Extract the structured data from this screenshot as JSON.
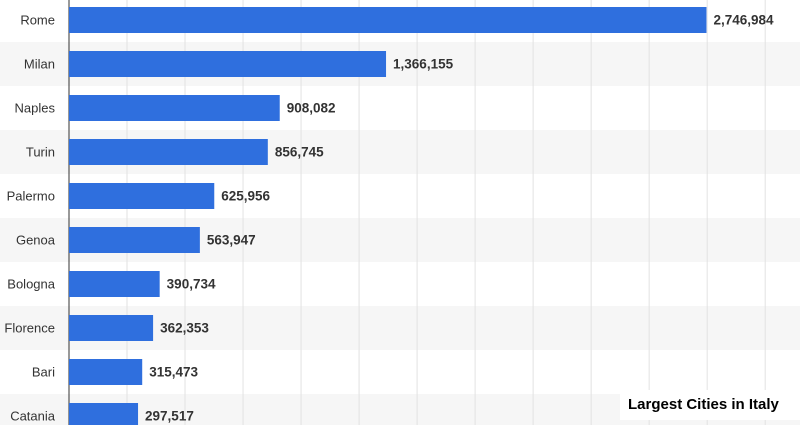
{
  "chart_data": {
    "type": "bar",
    "orientation": "horizontal",
    "title": "Largest Cities in Italy",
    "categories": [
      "Rome",
      "Milan",
      "Naples",
      "Turin",
      "Palermo",
      "Genoa",
      "Bologna",
      "Florence",
      "Bari",
      "Catania"
    ],
    "values": [
      2746984,
      1366155,
      908082,
      856745,
      625956,
      563947,
      390734,
      362353,
      315473,
      297517
    ],
    "value_labels": [
      "2,746,984",
      "1,366,155",
      "908,082",
      "856,745",
      "625,956",
      "563,947",
      "390,734",
      "362,353",
      "315,473",
      "297,517"
    ],
    "color": "#2f6fde",
    "xlim": [
      0,
      3150000
    ],
    "xticks": [
      0,
      250000,
      500000,
      750000,
      1000000,
      1250000,
      1500000,
      1750000,
      2000000,
      2250000,
      2500000,
      2750000,
      3000000
    ],
    "grid": true
  }
}
